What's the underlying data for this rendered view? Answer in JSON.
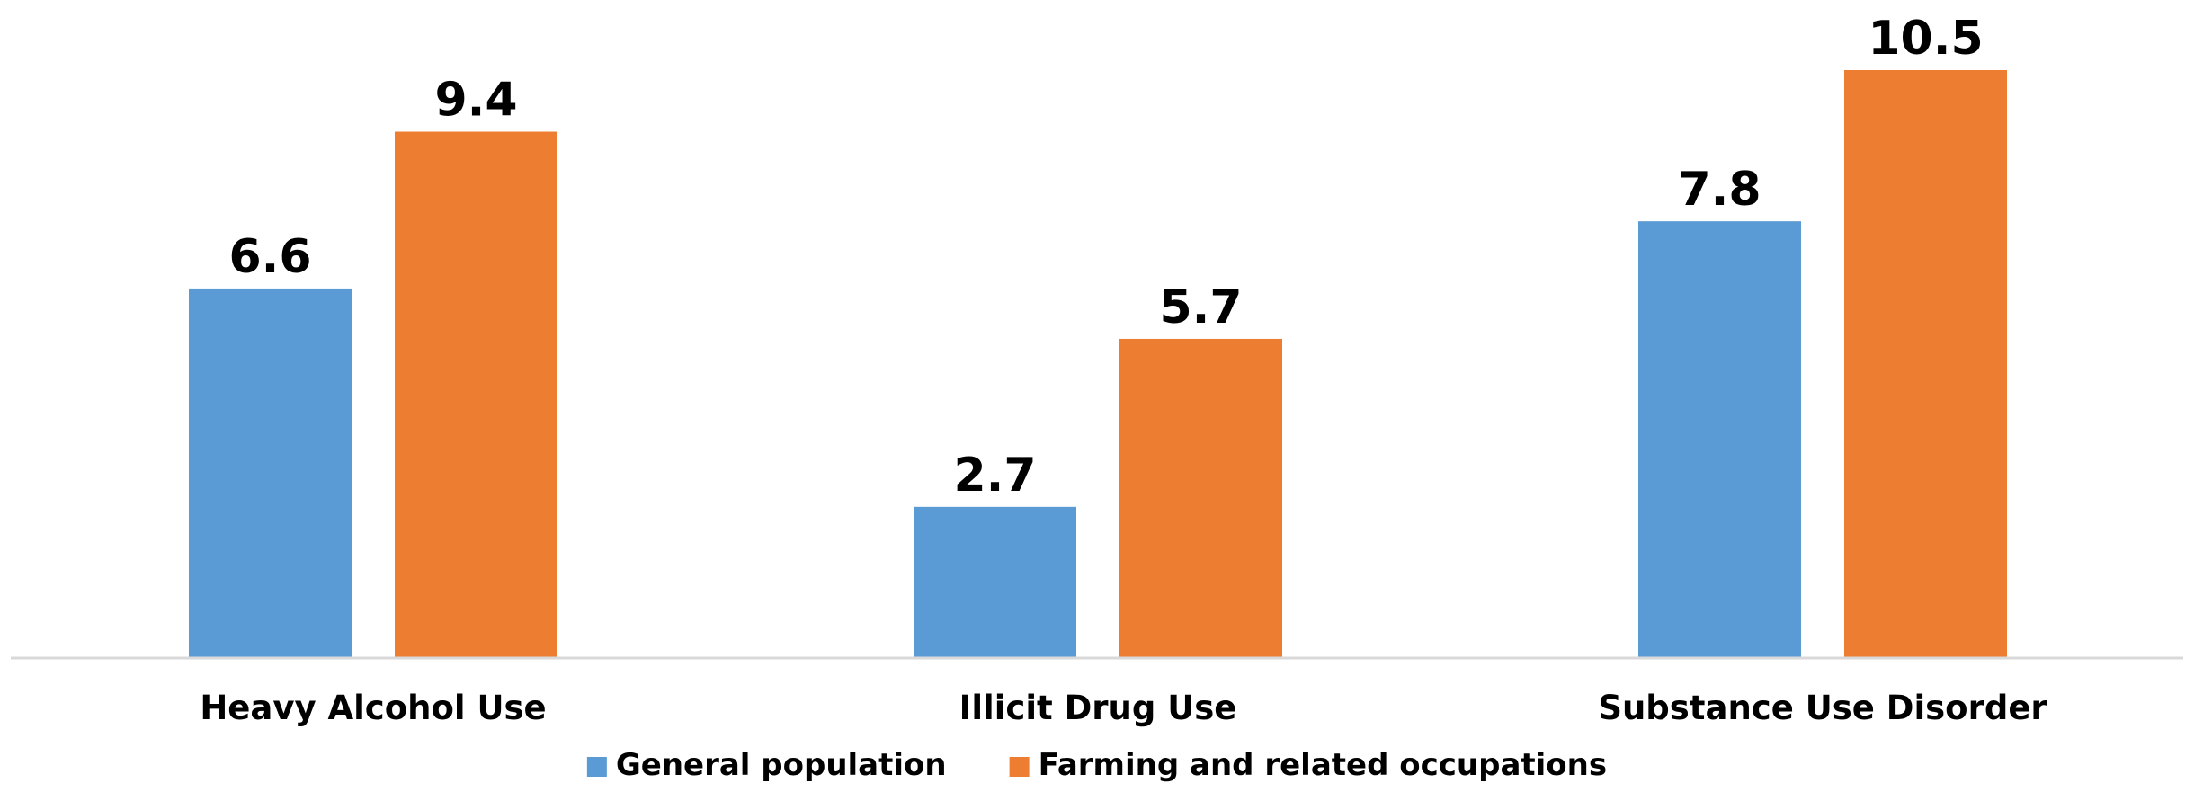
{
  "chart_data": {
    "type": "bar",
    "title": "",
    "xlabel": "",
    "ylabel": "",
    "categories": [
      "Heavy Alcohol Use",
      "Illicit Drug Use",
      "Substance Use Disorder"
    ],
    "series": [
      {
        "name": "General population",
        "color": "#5B9BD5",
        "values": [
          6.6,
          2.7,
          7.8
        ],
        "labels": [
          "6.6",
          "2.7",
          "7.8"
        ]
      },
      {
        "name": "Farming and related occupations",
        "color": "#ED7D31",
        "values": [
          9.4,
          5.7,
          10.5
        ],
        "labels": [
          "9.4",
          "5.7",
          "10.5"
        ]
      }
    ],
    "ylim": [
      0,
      10.5
    ],
    "gridlines": false,
    "value_axis_visible": false,
    "data_labels": true,
    "legend_position": "bottom"
  }
}
